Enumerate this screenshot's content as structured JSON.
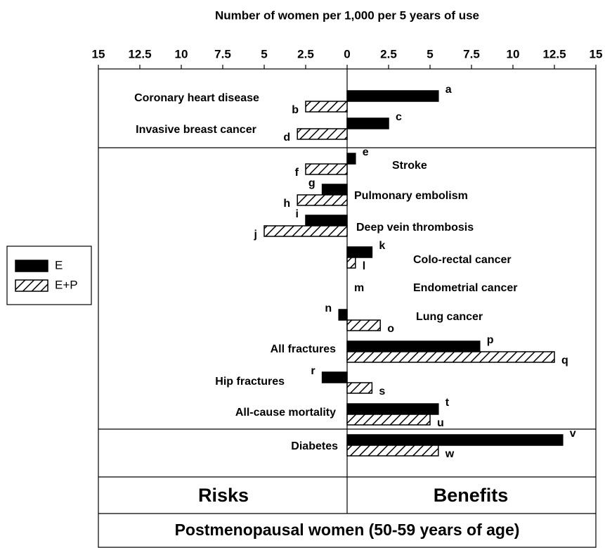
{
  "chart_data": {
    "type": "diverging-bar",
    "xlabel": "Number of women per 1,000 per 5 years of use",
    "title": "Postmenopausal women (50-59 years of age)",
    "risk_label": "Risks",
    "benefit_label": "Benefits",
    "xlim": [
      -15,
      15
    ],
    "xticks": [
      {
        "value": -15,
        "label": "15"
      },
      {
        "value": -12.5,
        "label": "12.5"
      },
      {
        "value": -10,
        "label": "10"
      },
      {
        "value": -7.5,
        "label": "7.5"
      },
      {
        "value": -5,
        "label": "5"
      },
      {
        "value": -2.5,
        "label": "2.5"
      },
      0,
      2.5,
      5,
      7.5,
      10,
      12.5,
      15
    ],
    "categories": [
      "Coronary heart disease",
      "Invasive breast cancer",
      "Stroke",
      "Pulmonary embolism",
      "Deep vein thrombosis",
      "Colo-rectal cancer",
      "Endometrial cancer",
      "Lung cancer",
      "All fractures",
      "Hip fractures",
      "All-cause mortality",
      "Diabetes"
    ],
    "series": [
      {
        "name": "E",
        "color": "#000000",
        "hatch": false,
        "values": [
          5.5,
          2.5,
          0.5,
          -1.5,
          -2.5,
          1.5,
          null,
          -0.5,
          8,
          -1.5,
          5.5,
          13
        ],
        "letters": [
          "a",
          "c",
          "e",
          "g",
          "i",
          "k",
          "m",
          "n",
          "p",
          "r",
          "t",
          "v"
        ]
      },
      {
        "name": "E+P",
        "color": "#000000",
        "hatch": true,
        "values": [
          -2.5,
          -3,
          -2.5,
          -3,
          -5,
          0.5,
          null,
          2,
          12.5,
          1.5,
          5,
          5.5
        ],
        "letters": [
          "b",
          "d",
          "f",
          "h",
          "j",
          "l",
          null,
          "o",
          "q",
          "s",
          "u",
          "w"
        ]
      }
    ],
    "legend": "left"
  }
}
